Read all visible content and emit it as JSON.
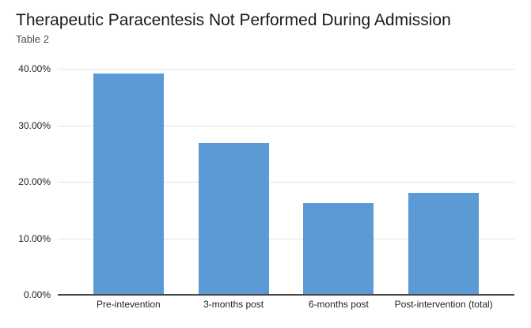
{
  "header": {
    "title": "Therapeutic Paracentesis Not Performed During Admission",
    "subtitle": "Table 2"
  },
  "chart_data": {
    "type": "bar",
    "title": "Therapeutic Paracentesis Not Performed During Admission",
    "subtitle": "Table 2",
    "categories": [
      "Pre-intevention",
      "3-months post",
      "6-months post",
      "Post-intervention (total)"
    ],
    "values": [
      39.2,
      26.8,
      16.2,
      18.0
    ],
    "unit": "%",
    "xlabel": "",
    "ylabel": "",
    "ylim": [
      0,
      40
    ],
    "yticks": [
      {
        "value": 0,
        "label": "0.00%"
      },
      {
        "value": 10,
        "label": "10.00%"
      },
      {
        "value": 20,
        "label": "20.00%"
      },
      {
        "value": 30,
        "label": "30.00%"
      },
      {
        "value": 40,
        "label": "40.00%"
      }
    ],
    "grid": true,
    "legend": "none",
    "bar_color": "#5b9ad5"
  },
  "colors": {
    "bar": "#5b9ad5",
    "grid": "#e3e3e3",
    "axis": "#474747",
    "title": "#1a1a1a",
    "subtitle": "#4d4d4d",
    "tick": "#222222",
    "background": "#ffffff"
  }
}
